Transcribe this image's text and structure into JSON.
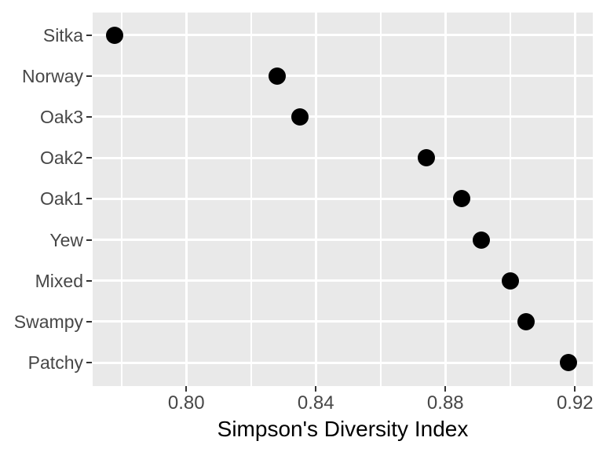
{
  "chart_data": {
    "type": "scatter",
    "subtype": "cleveland-dot-plot",
    "orientation": "horizontal",
    "title": "",
    "xlabel": "Simpson's Diversity Index",
    "ylabel": "",
    "categories": [
      "Sitka",
      "Norway",
      "Oak3",
      "Oak2",
      "Oak1",
      "Yew",
      "Mixed",
      "Swampy",
      "Patchy"
    ],
    "values": [
      0.778,
      0.828,
      0.835,
      0.874,
      0.885,
      0.891,
      0.9,
      0.905,
      0.918
    ],
    "x_ticks": [
      0.8,
      0.84,
      0.88,
      0.92
    ],
    "x_tick_labels": [
      "0.80",
      "0.84",
      "0.88",
      "0.92"
    ],
    "x_minor_ticks": [
      0.78,
      0.82,
      0.86,
      0.9
    ],
    "xlim": [
      0.7711,
      0.9255
    ],
    "grid": "major-rows, major+minor columns, white on gray panel",
    "legend_position": "none",
    "colors": {
      "point": "#000000",
      "panel_background": "#e9e9e9",
      "gridline": "#ffffff",
      "axis_text": "#474747",
      "axis_title": "#000000",
      "tick_mark": "#333333",
      "figure_background": "#ffffff"
    }
  }
}
